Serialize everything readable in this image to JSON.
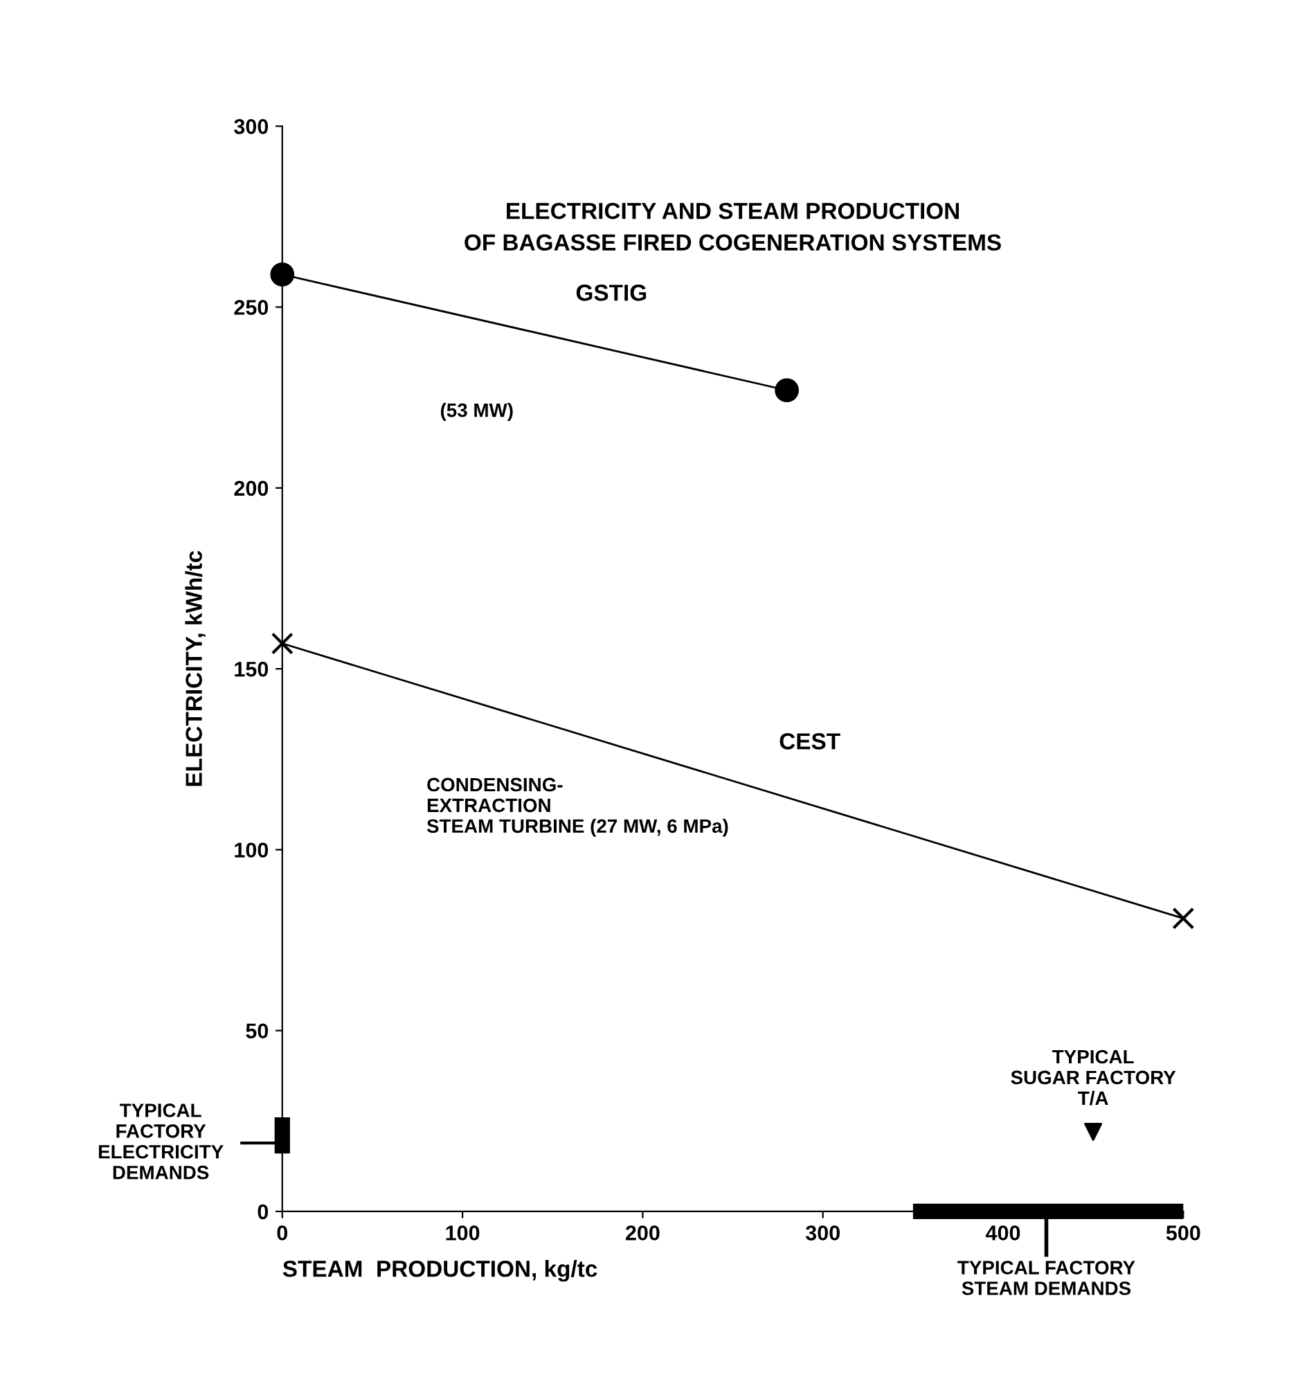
{
  "chart_data": {
    "type": "line",
    "title": "ELECTRICITY AND STEAM PRODUCTION\nOF BAGASSE FIRED COGENERATION SYSTEMS",
    "xlabel": "STEAM  PRODUCTION, kg/tc",
    "ylabel": "ELECTRICITY, kWh/tc",
    "series": [
      {
        "name": "GSTIG",
        "color": "#000000",
        "x": [
          0,
          280
        ],
        "values": [
          259,
          227
        ],
        "marker": "circle"
      },
      {
        "name": "CEST",
        "color": "#000000",
        "x": [
          0,
          500
        ],
        "values": [
          157,
          81
        ],
        "marker": "cross"
      },
      {
        "type": "scatter",
        "color": "#000000",
        "x": [
          450
        ],
        "values": [
          22
        ],
        "marker": "triangle"
      },
      {
        "color": "#000000",
        "x": [
          0,
          0
        ],
        "values": [
          16,
          26
        ],
        "marker": "none"
      },
      {
        "color": "#000000",
        "x": [
          350,
          500
        ],
        "values": [
          0,
          0
        ],
        "marker": "none"
      }
    ],
    "annotations": [
      "(53 MW)",
      "CONDENSING-\nEXTRACTION\nSTEAM TURBINE (27 MW, 6 MPa)",
      "TYPICAL\nFACTORY\nELECTRICITY\nDEMANDS",
      {
        "text": "TYPICAL\nSUGAR FACTORY\nT/A",
        "x": 450,
        "y": 22
      },
      "TYPICAL FACTORY\nSTEAM DEMANDS"
    ],
    "xlim": [
      0,
      500
    ],
    "xticks": [
      0,
      100,
      200,
      300,
      400,
      500
    ],
    "ylim": [
      0,
      300
    ],
    "yticks": [
      0,
      50,
      100,
      150,
      200,
      250,
      300
    ],
    "grid": false,
    "legend": false,
    "line_style": "solid"
  }
}
